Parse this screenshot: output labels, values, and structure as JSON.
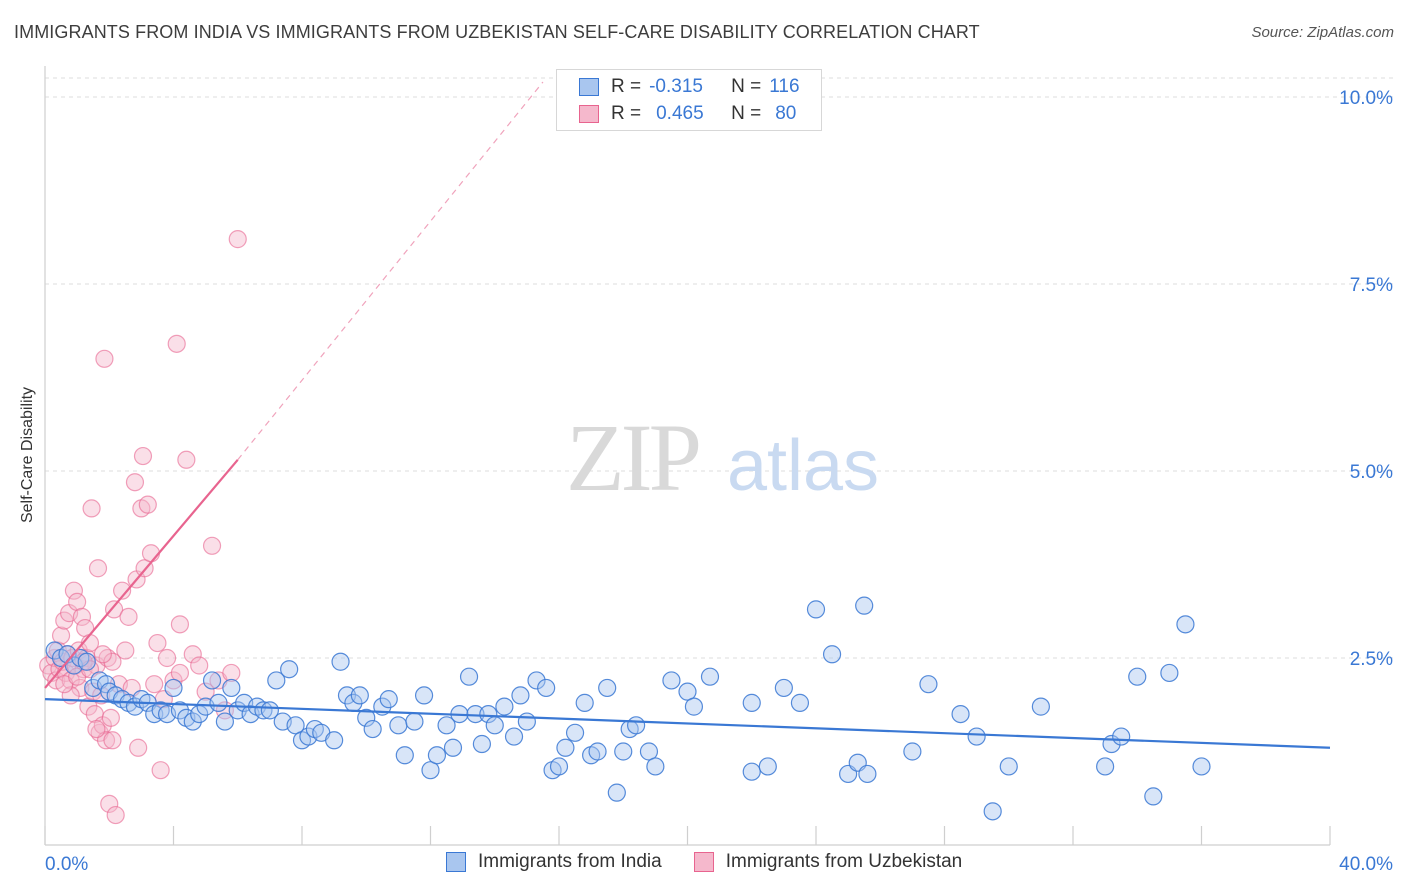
{
  "title": "IMMIGRANTS FROM INDIA VS IMMIGRANTS FROM UZBEKISTAN SELF-CARE DISABILITY CORRELATION CHART",
  "source": "Source: ZipAtlas.com",
  "watermark": {
    "zip": "ZIP",
    "atlas": "atlas"
  },
  "colors": {
    "india": "#3a78d4",
    "india_fill": "#a9c6ef",
    "uzbek": "#e8648f",
    "uzbek_fill": "#f5b8cc",
    "axis_text": "#3a78d4"
  },
  "legend": {
    "india": {
      "r_label": "R =",
      "r_value": "-0.315",
      "n_label": "N =",
      "n_value": "116"
    },
    "uzbek": {
      "r_label": "R =",
      "r_value": "0.465",
      "n_label": "N =",
      "n_value": "80"
    }
  },
  "chart_data": {
    "type": "scatter",
    "title": "IMMIGRANTS FROM INDIA VS IMMIGRANTS FROM UZBEKISTAN SELF-CARE DISABILITY CORRELATION CHART",
    "xlabel": "",
    "ylabel": "Self-Care Disability",
    "xlim": [
      0,
      40
    ],
    "ylim": [
      0,
      10.5
    ],
    "x_tick_labels": [
      "0.0%",
      "40.0%"
    ],
    "y_ticks": [
      2.5,
      5.0,
      7.5,
      10.0
    ],
    "y_tick_labels": [
      "2.5%",
      "5.0%",
      "7.5%",
      "10.0%"
    ],
    "grid": true,
    "legend_position": "top-center",
    "series": [
      {
        "name": "Immigrants from India",
        "r": -0.315,
        "n": 116,
        "trend": {
          "x": [
            0,
            40
          ],
          "y": [
            1.95,
            1.3
          ]
        },
        "points": [
          [
            0.3,
            2.6
          ],
          [
            0.5,
            2.5
          ],
          [
            0.7,
            2.55
          ],
          [
            0.9,
            2.4
          ],
          [
            1.1,
            2.5
          ],
          [
            1.3,
            2.45
          ],
          [
            1.5,
            2.1
          ],
          [
            1.7,
            2.2
          ],
          [
            1.9,
            2.15
          ],
          [
            2.0,
            2.05
          ],
          [
            2.2,
            2.0
          ],
          [
            2.4,
            1.95
          ],
          [
            2.6,
            1.9
          ],
          [
            2.8,
            1.85
          ],
          [
            3.0,
            1.95
          ],
          [
            3.2,
            1.9
          ],
          [
            3.4,
            1.75
          ],
          [
            3.6,
            1.8
          ],
          [
            3.8,
            1.75
          ],
          [
            4.0,
            2.1
          ],
          [
            4.2,
            1.8
          ],
          [
            4.4,
            1.7
          ],
          [
            4.6,
            1.65
          ],
          [
            4.8,
            1.75
          ],
          [
            5.0,
            1.85
          ],
          [
            5.2,
            2.2
          ],
          [
            5.4,
            1.9
          ],
          [
            5.6,
            1.65
          ],
          [
            5.8,
            2.1
          ],
          [
            6.0,
            1.8
          ],
          [
            6.2,
            1.9
          ],
          [
            6.4,
            1.75
          ],
          [
            6.6,
            1.85
          ],
          [
            6.8,
            1.8
          ],
          [
            7.0,
            1.8
          ],
          [
            7.2,
            2.2
          ],
          [
            7.4,
            1.65
          ],
          [
            7.6,
            2.35
          ],
          [
            7.8,
            1.6
          ],
          [
            8.0,
            1.4
          ],
          [
            8.2,
            1.45
          ],
          [
            8.4,
            1.55
          ],
          [
            8.6,
            1.5
          ],
          [
            9.0,
            1.4
          ],
          [
            9.2,
            2.45
          ],
          [
            9.4,
            2.0
          ],
          [
            9.6,
            1.9
          ],
          [
            9.8,
            2.0
          ],
          [
            10.0,
            1.7
          ],
          [
            10.2,
            1.55
          ],
          [
            10.5,
            1.85
          ],
          [
            10.7,
            1.95
          ],
          [
            11.0,
            1.6
          ],
          [
            11.2,
            1.2
          ],
          [
            11.5,
            1.65
          ],
          [
            11.8,
            2.0
          ],
          [
            12.0,
            1.0
          ],
          [
            12.2,
            1.2
          ],
          [
            12.5,
            1.6
          ],
          [
            12.7,
            1.3
          ],
          [
            12.9,
            1.75
          ],
          [
            13.2,
            2.25
          ],
          [
            13.4,
            1.75
          ],
          [
            13.6,
            1.35
          ],
          [
            13.8,
            1.75
          ],
          [
            14.0,
            1.6
          ],
          [
            14.3,
            1.85
          ],
          [
            14.6,
            1.45
          ],
          [
            14.8,
            2.0
          ],
          [
            15.0,
            1.65
          ],
          [
            15.3,
            2.2
          ],
          [
            15.6,
            2.1
          ],
          [
            15.8,
            1.0
          ],
          [
            16.0,
            1.05
          ],
          [
            16.2,
            1.3
          ],
          [
            16.5,
            1.5
          ],
          [
            16.8,
            1.9
          ],
          [
            17.0,
            1.2
          ],
          [
            17.2,
            1.25
          ],
          [
            17.5,
            2.1
          ],
          [
            17.8,
            0.7
          ],
          [
            18.0,
            1.25
          ],
          [
            18.2,
            1.55
          ],
          [
            18.4,
            1.6
          ],
          [
            18.8,
            1.25
          ],
          [
            19.0,
            1.05
          ],
          [
            19.5,
            2.2
          ],
          [
            20.0,
            2.05
          ],
          [
            20.2,
            1.85
          ],
          [
            20.7,
            2.25
          ],
          [
            22.0,
            0.98
          ],
          [
            22.0,
            1.9
          ],
          [
            22.5,
            1.05
          ],
          [
            23.0,
            2.1
          ],
          [
            23.5,
            1.9
          ],
          [
            24.0,
            3.15
          ],
          [
            24.5,
            2.55
          ],
          [
            25.0,
            0.95
          ],
          [
            25.3,
            1.1
          ],
          [
            25.6,
            0.95
          ],
          [
            25.5,
            3.2
          ],
          [
            27.0,
            1.25
          ],
          [
            27.5,
            2.15
          ],
          [
            28.5,
            1.75
          ],
          [
            29.0,
            1.45
          ],
          [
            29.5,
            0.45
          ],
          [
            30.0,
            1.05
          ],
          [
            31.0,
            1.85
          ],
          [
            33.0,
            1.05
          ],
          [
            33.2,
            1.35
          ],
          [
            33.5,
            1.45
          ],
          [
            34.0,
            2.25
          ],
          [
            34.5,
            0.65
          ],
          [
            35.0,
            2.3
          ],
          [
            35.5,
            2.95
          ],
          [
            36.0,
            1.05
          ]
        ]
      },
      {
        "name": "Immigrants from Uzbekistan",
        "r": 0.465,
        "n": 80,
        "trend": {
          "x": [
            0,
            6
          ],
          "y": [
            2.1,
            5.15
          ],
          "dashed_extension": {
            "x": [
              6,
              15.5
            ],
            "y": [
              5.15,
              10.2
            ]
          }
        },
        "points": [
          [
            0.1,
            2.4
          ],
          [
            0.2,
            2.3
          ],
          [
            0.3,
            2.5
          ],
          [
            0.35,
            2.2
          ],
          [
            0.4,
            2.6
          ],
          [
            0.45,
            2.35
          ],
          [
            0.5,
            2.8
          ],
          [
            0.55,
            2.45
          ],
          [
            0.6,
            3.0
          ],
          [
            0.65,
            2.3
          ],
          [
            0.7,
            2.55
          ],
          [
            0.75,
            3.1
          ],
          [
            0.8,
            2.2
          ],
          [
            0.85,
            2.5
          ],
          [
            0.9,
            3.4
          ],
          [
            0.95,
            2.4
          ],
          [
            1.0,
            3.25
          ],
          [
            1.05,
            2.6
          ],
          [
            1.1,
            2.1
          ],
          [
            1.15,
            3.05
          ],
          [
            1.2,
            2.35
          ],
          [
            1.25,
            2.9
          ],
          [
            1.3,
            2.5
          ],
          [
            1.35,
            1.85
          ],
          [
            1.4,
            2.7
          ],
          [
            1.45,
            4.5
          ],
          [
            1.5,
            2.05
          ],
          [
            1.55,
            1.75
          ],
          [
            1.6,
            2.4
          ],
          [
            1.65,
            3.7
          ],
          [
            1.7,
            1.5
          ],
          [
            1.75,
            2.0
          ],
          [
            1.8,
            1.6
          ],
          [
            1.85,
            6.5
          ],
          [
            1.9,
            1.4
          ],
          [
            1.95,
            2.5
          ],
          [
            2.0,
            0.55
          ],
          [
            2.05,
            1.7
          ],
          [
            2.1,
            2.45
          ],
          [
            2.15,
            3.15
          ],
          [
            2.2,
            0.4
          ],
          [
            2.3,
            2.15
          ],
          [
            2.4,
            3.4
          ],
          [
            2.5,
            2.6
          ],
          [
            2.6,
            3.05
          ],
          [
            2.7,
            2.1
          ],
          [
            2.8,
            4.85
          ],
          [
            2.85,
            3.55
          ],
          [
            2.9,
            1.3
          ],
          [
            3.0,
            4.5
          ],
          [
            3.05,
            5.2
          ],
          [
            3.1,
            3.7
          ],
          [
            3.2,
            4.55
          ],
          [
            3.3,
            3.9
          ],
          [
            3.4,
            2.15
          ],
          [
            3.5,
            2.7
          ],
          [
            3.6,
            1.0
          ],
          [
            3.7,
            1.95
          ],
          [
            3.8,
            2.5
          ],
          [
            4.0,
            2.2
          ],
          [
            4.2,
            2.3
          ],
          [
            4.4,
            5.15
          ],
          [
            4.6,
            2.55
          ],
          [
            4.8,
            2.4
          ],
          [
            5.0,
            2.05
          ],
          [
            5.2,
            4.0
          ],
          [
            5.4,
            2.2
          ],
          [
            5.6,
            1.8
          ],
          [
            5.8,
            2.3
          ],
          [
            6.0,
            8.1
          ],
          [
            4.1,
            6.7
          ],
          [
            4.2,
            2.95
          ],
          [
            1.2,
            2.45
          ],
          [
            0.8,
            2.0
          ],
          [
            1.6,
            1.55
          ],
          [
            2.1,
            1.4
          ],
          [
            0.6,
            2.15
          ],
          [
            1.0,
            2.25
          ],
          [
            1.4,
            2.35
          ],
          [
            1.8,
            2.55
          ]
        ]
      }
    ]
  },
  "bottom_legend": {
    "india": "Immigrants from India",
    "uzbek": "Immigrants from Uzbekistan"
  }
}
